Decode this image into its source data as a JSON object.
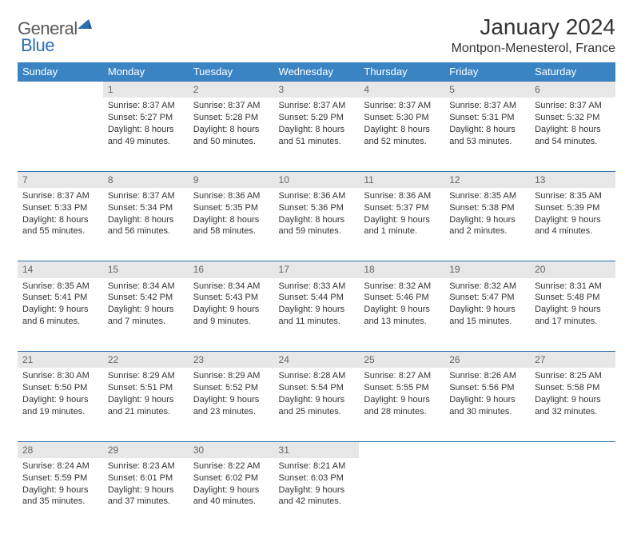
{
  "brand": {
    "general": "General",
    "blue": "Blue"
  },
  "title": "January 2024",
  "location": "Montpon-Menesterol, France",
  "header_bg": "#3b84c4",
  "header_fg": "#ffffff",
  "daynum_bg": "#e7e7e7",
  "rule_color": "#2b6fb0",
  "dow": [
    "Sunday",
    "Monday",
    "Tuesday",
    "Wednesday",
    "Thursday",
    "Friday",
    "Saturday"
  ],
  "weeks": [
    {
      "nums": [
        "",
        "1",
        "2",
        "3",
        "4",
        "5",
        "6"
      ],
      "cells": [
        null,
        {
          "sr": "Sunrise: 8:37 AM",
          "ss": "Sunset: 5:27 PM",
          "d1": "Daylight: 8 hours",
          "d2": "and 49 minutes."
        },
        {
          "sr": "Sunrise: 8:37 AM",
          "ss": "Sunset: 5:28 PM",
          "d1": "Daylight: 8 hours",
          "d2": "and 50 minutes."
        },
        {
          "sr": "Sunrise: 8:37 AM",
          "ss": "Sunset: 5:29 PM",
          "d1": "Daylight: 8 hours",
          "d2": "and 51 minutes."
        },
        {
          "sr": "Sunrise: 8:37 AM",
          "ss": "Sunset: 5:30 PM",
          "d1": "Daylight: 8 hours",
          "d2": "and 52 minutes."
        },
        {
          "sr": "Sunrise: 8:37 AM",
          "ss": "Sunset: 5:31 PM",
          "d1": "Daylight: 8 hours",
          "d2": "and 53 minutes."
        },
        {
          "sr": "Sunrise: 8:37 AM",
          "ss": "Sunset: 5:32 PM",
          "d1": "Daylight: 8 hours",
          "d2": "and 54 minutes."
        }
      ]
    },
    {
      "nums": [
        "7",
        "8",
        "9",
        "10",
        "11",
        "12",
        "13"
      ],
      "cells": [
        {
          "sr": "Sunrise: 8:37 AM",
          "ss": "Sunset: 5:33 PM",
          "d1": "Daylight: 8 hours",
          "d2": "and 55 minutes."
        },
        {
          "sr": "Sunrise: 8:37 AM",
          "ss": "Sunset: 5:34 PM",
          "d1": "Daylight: 8 hours",
          "d2": "and 56 minutes."
        },
        {
          "sr": "Sunrise: 8:36 AM",
          "ss": "Sunset: 5:35 PM",
          "d1": "Daylight: 8 hours",
          "d2": "and 58 minutes."
        },
        {
          "sr": "Sunrise: 8:36 AM",
          "ss": "Sunset: 5:36 PM",
          "d1": "Daylight: 8 hours",
          "d2": "and 59 minutes."
        },
        {
          "sr": "Sunrise: 8:36 AM",
          "ss": "Sunset: 5:37 PM",
          "d1": "Daylight: 9 hours",
          "d2": "and 1 minute."
        },
        {
          "sr": "Sunrise: 8:35 AM",
          "ss": "Sunset: 5:38 PM",
          "d1": "Daylight: 9 hours",
          "d2": "and 2 minutes."
        },
        {
          "sr": "Sunrise: 8:35 AM",
          "ss": "Sunset: 5:39 PM",
          "d1": "Daylight: 9 hours",
          "d2": "and 4 minutes."
        }
      ]
    },
    {
      "nums": [
        "14",
        "15",
        "16",
        "17",
        "18",
        "19",
        "20"
      ],
      "cells": [
        {
          "sr": "Sunrise: 8:35 AM",
          "ss": "Sunset: 5:41 PM",
          "d1": "Daylight: 9 hours",
          "d2": "and 6 minutes."
        },
        {
          "sr": "Sunrise: 8:34 AM",
          "ss": "Sunset: 5:42 PM",
          "d1": "Daylight: 9 hours",
          "d2": "and 7 minutes."
        },
        {
          "sr": "Sunrise: 8:34 AM",
          "ss": "Sunset: 5:43 PM",
          "d1": "Daylight: 9 hours",
          "d2": "and 9 minutes."
        },
        {
          "sr": "Sunrise: 8:33 AM",
          "ss": "Sunset: 5:44 PM",
          "d1": "Daylight: 9 hours",
          "d2": "and 11 minutes."
        },
        {
          "sr": "Sunrise: 8:32 AM",
          "ss": "Sunset: 5:46 PM",
          "d1": "Daylight: 9 hours",
          "d2": "and 13 minutes."
        },
        {
          "sr": "Sunrise: 8:32 AM",
          "ss": "Sunset: 5:47 PM",
          "d1": "Daylight: 9 hours",
          "d2": "and 15 minutes."
        },
        {
          "sr": "Sunrise: 8:31 AM",
          "ss": "Sunset: 5:48 PM",
          "d1": "Daylight: 9 hours",
          "d2": "and 17 minutes."
        }
      ]
    },
    {
      "nums": [
        "21",
        "22",
        "23",
        "24",
        "25",
        "26",
        "27"
      ],
      "cells": [
        {
          "sr": "Sunrise: 8:30 AM",
          "ss": "Sunset: 5:50 PM",
          "d1": "Daylight: 9 hours",
          "d2": "and 19 minutes."
        },
        {
          "sr": "Sunrise: 8:29 AM",
          "ss": "Sunset: 5:51 PM",
          "d1": "Daylight: 9 hours",
          "d2": "and 21 minutes."
        },
        {
          "sr": "Sunrise: 8:29 AM",
          "ss": "Sunset: 5:52 PM",
          "d1": "Daylight: 9 hours",
          "d2": "and 23 minutes."
        },
        {
          "sr": "Sunrise: 8:28 AM",
          "ss": "Sunset: 5:54 PM",
          "d1": "Daylight: 9 hours",
          "d2": "and 25 minutes."
        },
        {
          "sr": "Sunrise: 8:27 AM",
          "ss": "Sunset: 5:55 PM",
          "d1": "Daylight: 9 hours",
          "d2": "and 28 minutes."
        },
        {
          "sr": "Sunrise: 8:26 AM",
          "ss": "Sunset: 5:56 PM",
          "d1": "Daylight: 9 hours",
          "d2": "and 30 minutes."
        },
        {
          "sr": "Sunrise: 8:25 AM",
          "ss": "Sunset: 5:58 PM",
          "d1": "Daylight: 9 hours",
          "d2": "and 32 minutes."
        }
      ]
    },
    {
      "nums": [
        "28",
        "29",
        "30",
        "31",
        "",
        "",
        ""
      ],
      "cells": [
        {
          "sr": "Sunrise: 8:24 AM",
          "ss": "Sunset: 5:59 PM",
          "d1": "Daylight: 9 hours",
          "d2": "and 35 minutes."
        },
        {
          "sr": "Sunrise: 8:23 AM",
          "ss": "Sunset: 6:01 PM",
          "d1": "Daylight: 9 hours",
          "d2": "and 37 minutes."
        },
        {
          "sr": "Sunrise: 8:22 AM",
          "ss": "Sunset: 6:02 PM",
          "d1": "Daylight: 9 hours",
          "d2": "and 40 minutes."
        },
        {
          "sr": "Sunrise: 8:21 AM",
          "ss": "Sunset: 6:03 PM",
          "d1": "Daylight: 9 hours",
          "d2": "and 42 minutes."
        },
        null,
        null,
        null
      ]
    }
  ]
}
